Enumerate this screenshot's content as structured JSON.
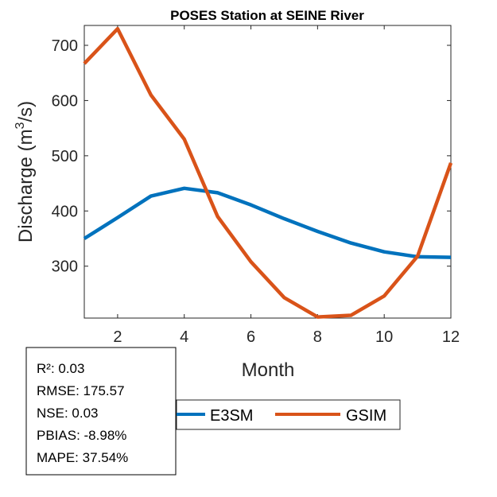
{
  "chart_data": {
    "type": "line",
    "title": "POSES  Station at  SEINE  River",
    "xlabel": "Month",
    "ylabel": "Discharge (m",
    "ylabel_sup": "3",
    "ylabel_tail": "/s)",
    "xlim": [
      1,
      12
    ],
    "ylim": [
      206,
      736
    ],
    "xticks": [
      2,
      4,
      6,
      8,
      10,
      12
    ],
    "yticks": [
      300,
      400,
      500,
      600,
      700
    ],
    "x": [
      1,
      2,
      3,
      4,
      5,
      6,
      7,
      8,
      9,
      10,
      11,
      12
    ],
    "series": [
      {
        "name": "E3SM",
        "color": "#0072BD",
        "values": [
          350,
          388,
          427,
          441,
          433,
          411,
          386,
          363,
          342,
          326,
          317,
          316
        ]
      },
      {
        "name": "GSIM",
        "color": "#D95319",
        "values": [
          667,
          730,
          610,
          530,
          390,
          308,
          243,
          208,
          211,
          246,
          318,
          487
        ]
      }
    ],
    "legend": "bottom-center",
    "grid": false,
    "stats": [
      "R²: 0.03",
      "RMSE: 175.57",
      "NSE: 0.03",
      "PBIAS: -8.98%",
      "MAPE: 37.54%"
    ]
  }
}
